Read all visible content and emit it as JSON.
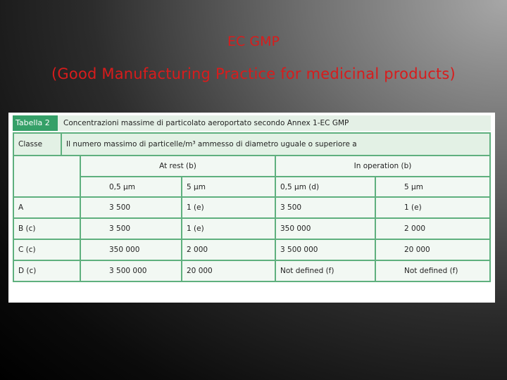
{
  "slide": {
    "title_line1": "EC GMP",
    "title_line2": "(Good Manufacturing Practice for medicinal products)",
    "title_color": "#d81c1c"
  },
  "table": {
    "caption_tag": "Tabella 2",
    "caption": "Concentrazioni massime di particolato aeroportato secondo Annex 1-EC GMP",
    "class_header": "Classe",
    "description": "Il numero massimo di particelle/m³ ammesso di diametro uguale o superiore a",
    "group_at_rest": "At rest (b)",
    "group_in_operation": "In operation (b)",
    "subheaders": [
      "0,5 µm",
      "5 µm",
      "0,5 µm (d)",
      "5 µm"
    ],
    "rows": [
      {
        "class": "A",
        "cells": [
          "3 500",
          "1 (e)",
          "3 500",
          "1 (e)"
        ]
      },
      {
        "class": "B (c)",
        "cells": [
          "3 500",
          "1 (e)",
          "350 000",
          "2 000"
        ]
      },
      {
        "class": "C (c)",
        "cells": [
          "350 000",
          "2 000",
          "3 500 000",
          "20 000"
        ]
      },
      {
        "class": "D (c)",
        "cells": [
          "3 500 000",
          "20 000",
          "Not defined (f)",
          "Not defined (f)"
        ]
      }
    ],
    "accent_color": "#35a068"
  }
}
